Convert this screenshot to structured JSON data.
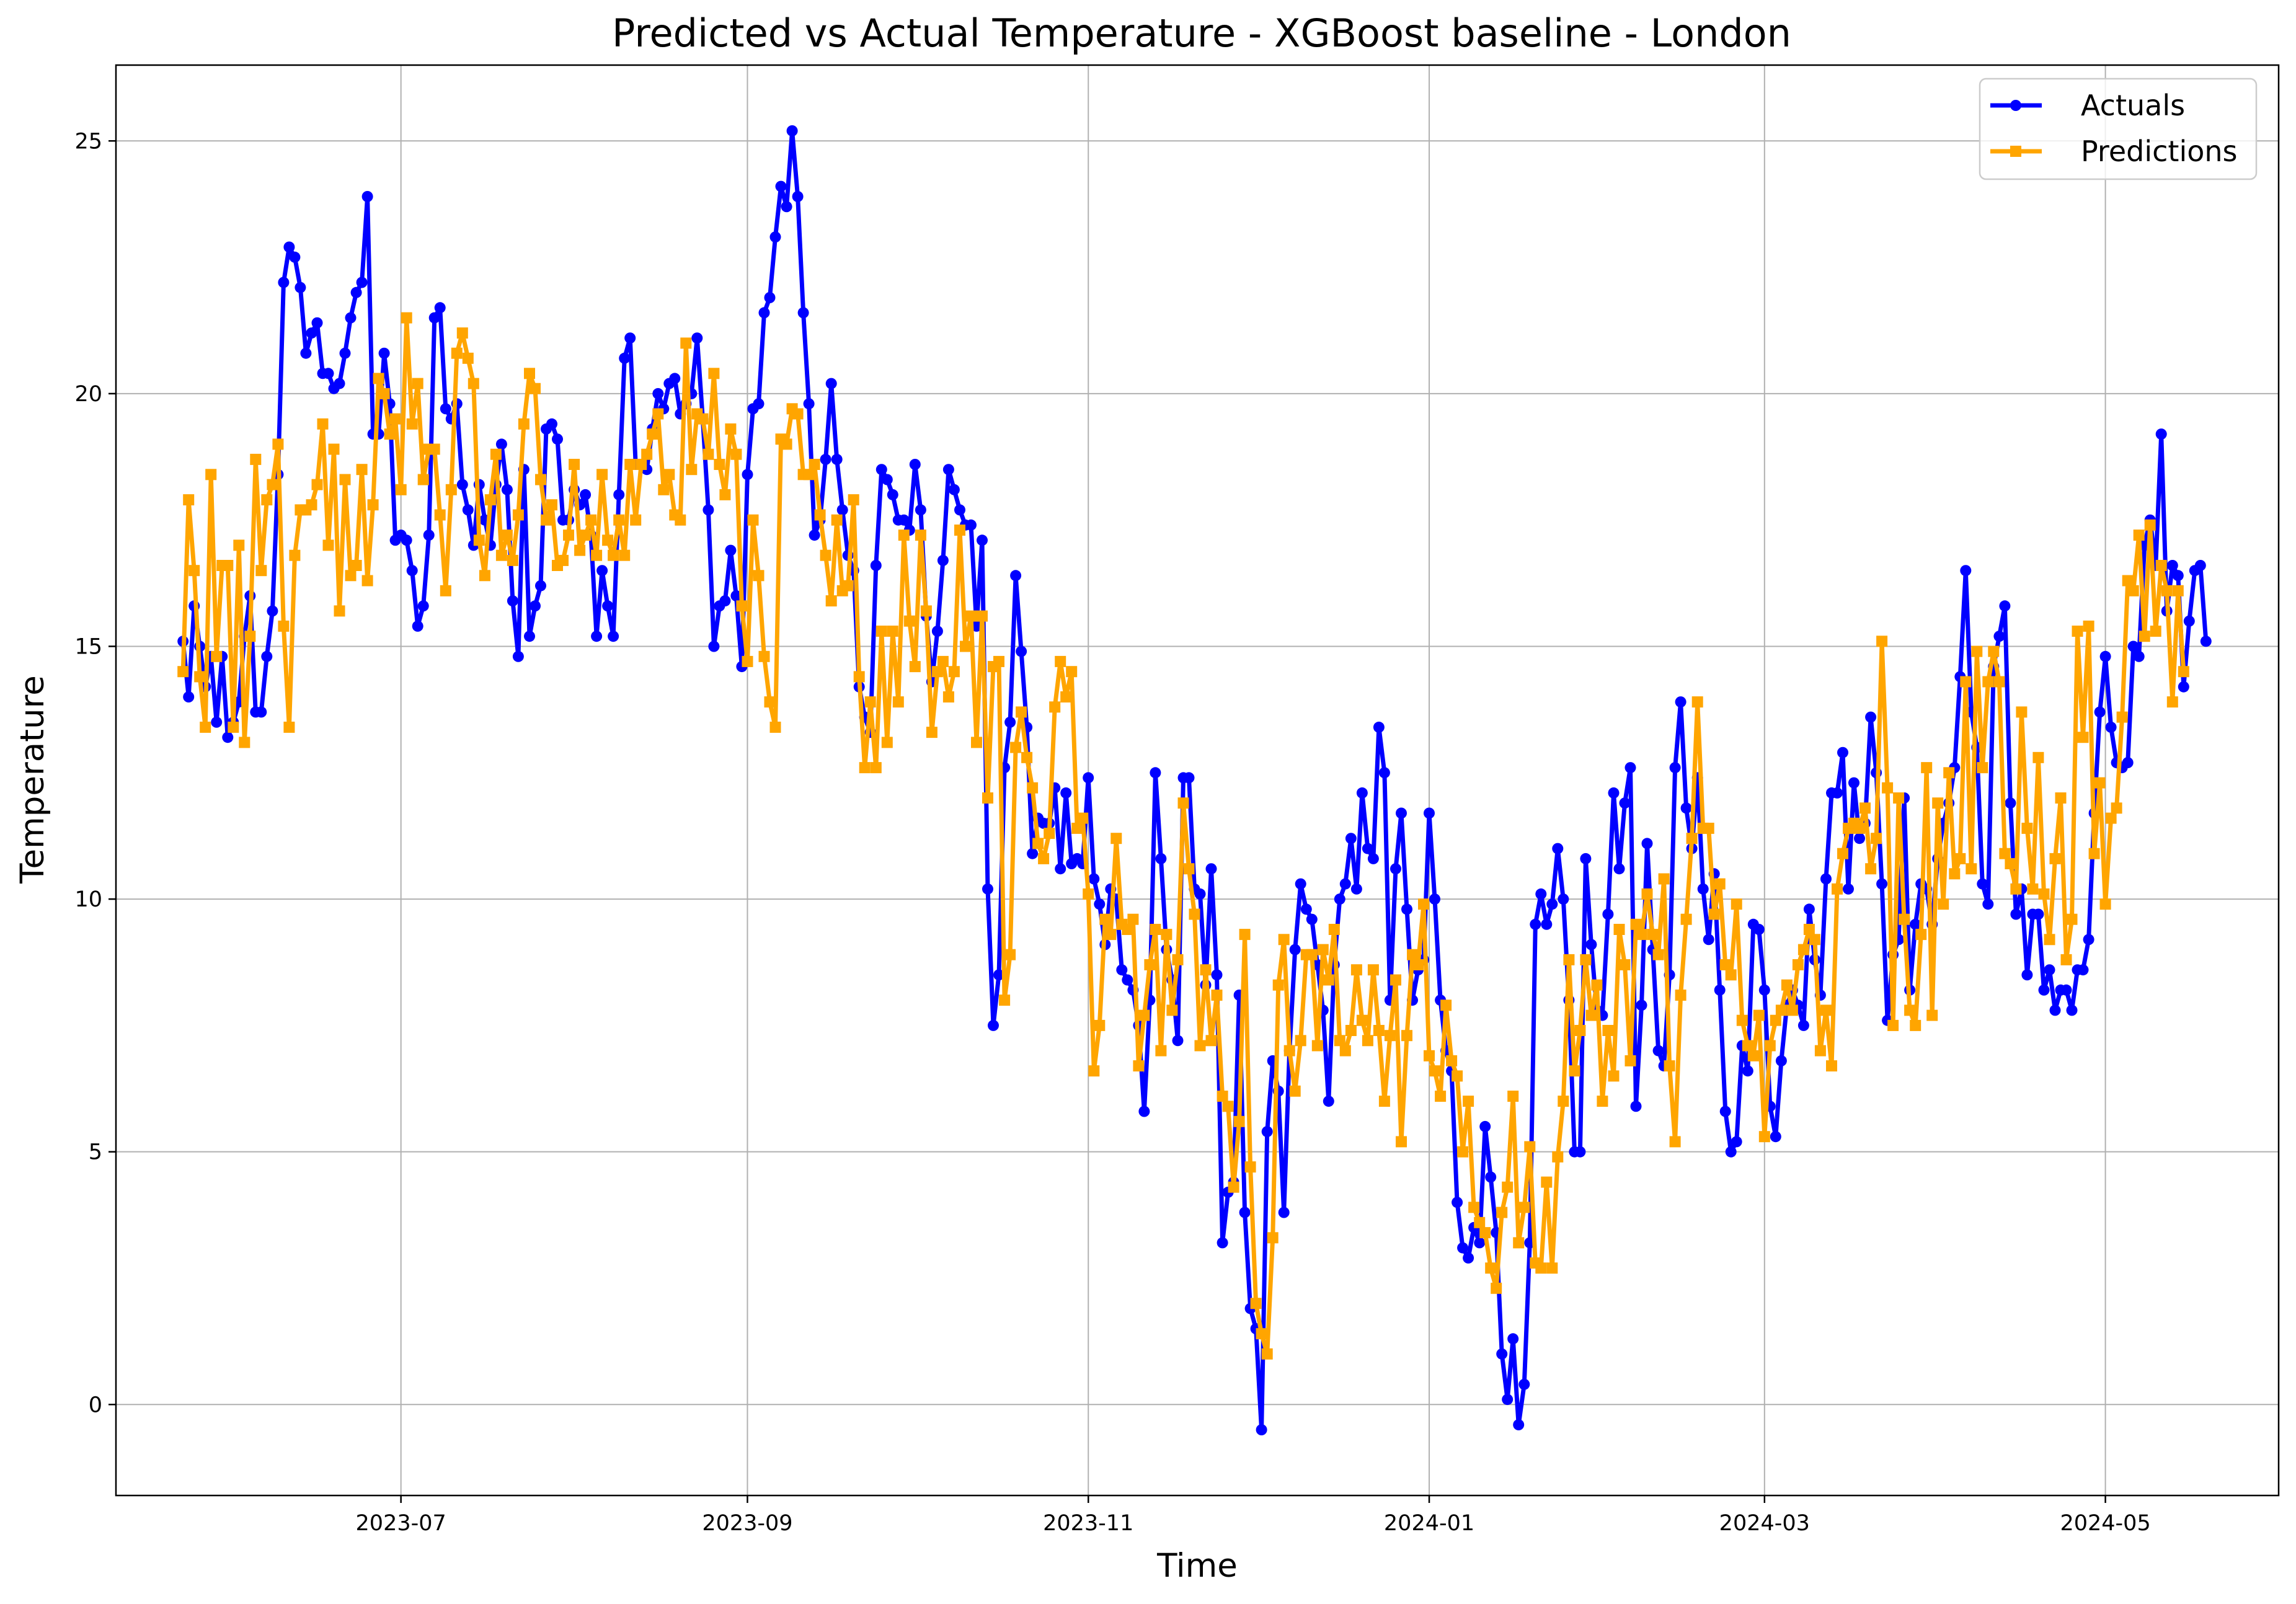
{
  "chart_data": {
    "type": "line",
    "title": "Predicted vs Actual Temperature - XGBoost baseline - London",
    "xlabel": "Time",
    "ylabel": "Temperature",
    "x_range": [
      "2023-05-11",
      "2024-06-01"
    ],
    "ylim": [
      -1.8,
      26.5
    ],
    "yticks": [
      0,
      5,
      10,
      15,
      20,
      25
    ],
    "xticks": [
      {
        "date": "2023-07-01",
        "label": "2023-07"
      },
      {
        "date": "2023-09-01",
        "label": "2023-09"
      },
      {
        "date": "2023-11-01",
        "label": "2023-11"
      },
      {
        "date": "2024-01-01",
        "label": "2024-01"
      },
      {
        "date": "2024-03-01",
        "label": "2024-03"
      },
      {
        "date": "2024-05-01",
        "label": "2024-05"
      }
    ],
    "grid": true,
    "legend_position": "top-right",
    "start_date": "2023-05-23",
    "series": [
      {
        "name": "Actuals",
        "color": "#0000ff",
        "marker": "circle",
        "values": [
          15.1,
          14.0,
          15.8,
          15.0,
          14.2,
          14.8,
          13.5,
          14.8,
          13.2,
          13.5,
          13.9,
          15.2,
          16.0,
          13.7,
          13.7,
          14.8,
          15.7,
          18.4,
          22.2,
          22.9,
          22.7,
          22.1,
          20.8,
          21.2,
          21.4,
          20.4,
          20.4,
          20.1,
          20.2,
          20.8,
          21.5,
          22.0,
          22.2,
          23.9,
          19.2,
          19.2,
          20.8,
          19.8,
          17.1,
          17.2,
          17.1,
          16.5,
          15.4,
          15.8,
          17.2,
          21.5,
          21.7,
          19.7,
          19.5,
          19.8,
          18.2,
          17.7,
          17.0,
          18.2,
          17.5,
          17.0,
          18.2,
          19.0,
          18.1,
          15.9,
          14.8,
          18.5,
          15.2,
          15.8,
          16.2,
          19.3,
          19.4,
          19.1,
          17.5,
          17.5,
          18.1,
          17.8,
          18.0,
          17.2,
          15.2,
          16.5,
          15.8,
          15.2,
          18.0,
          20.7,
          21.1,
          18.6,
          18.6,
          18.5,
          19.3,
          20.0,
          19.7,
          20.2,
          20.3,
          19.6,
          19.8,
          20.0,
          21.1,
          19.5,
          17.7,
          15.0,
          15.8,
          15.9,
          16.9,
          16.0,
          14.6,
          18.4,
          19.7,
          19.8,
          21.6,
          21.9,
          23.1,
          24.1,
          23.7,
          25.2,
          23.9,
          21.6,
          19.8,
          17.2,
          17.5,
          18.7,
          20.2,
          18.7,
          17.7,
          16.8,
          16.5,
          14.2,
          13.6,
          13.3,
          16.6,
          18.5,
          18.3,
          18.0,
          17.5,
          17.5,
          17.3,
          18.6,
          17.7,
          15.6,
          14.3,
          15.3,
          16.7,
          18.5,
          18.1,
          17.7,
          17.4,
          17.4,
          15.4,
          17.1,
          10.2,
          7.5,
          8.5,
          12.6,
          13.5,
          16.4,
          14.9,
          13.4,
          10.9,
          11.6,
          11.5,
          11.5,
          12.2,
          10.6,
          12.1,
          10.7,
          10.8,
          10.7,
          12.4,
          10.4,
          9.9,
          9.1,
          10.2,
          10.0,
          8.6,
          8.4,
          8.2,
          7.5,
          5.8,
          8.0,
          12.5,
          10.8,
          9.0,
          8.4,
          7.2,
          12.4,
          12.4,
          10.2,
          10.1,
          8.3,
          10.6,
          8.5,
          3.2,
          4.2,
          4.4,
          8.1,
          3.8,
          1.9,
          1.5,
          -0.5,
          5.4,
          6.8,
          6.2,
          3.8,
          7.0,
          9.0,
          10.3,
          9.8,
          9.6,
          8.7,
          7.8,
          6.0,
          8.7,
          10.0,
          10.3,
          11.2,
          10.2,
          12.1,
          11.0,
          10.8,
          13.4,
          12.5,
          8.0,
          10.6,
          11.7,
          9.8,
          8.0,
          8.6,
          8.8,
          11.7,
          10.0,
          8.0,
          7.0,
          6.6,
          4.0,
          3.1,
          2.9,
          3.5,
          3.2,
          5.5,
          4.5,
          3.4,
          1.0,
          0.1,
          1.3,
          -0.4,
          0.4,
          3.2,
          9.5,
          10.1,
          9.5,
          9.9,
          11.0,
          10.0,
          8.0,
          5.0,
          5.0,
          10.8,
          9.1,
          7.8,
          7.7,
          9.7,
          12.1,
          10.6,
          11.9,
          12.6,
          5.9,
          7.9,
          11.1,
          9.0,
          7.0,
          6.7,
          8.5,
          12.6,
          13.9,
          11.8,
          11.0,
          12.4,
          10.2,
          9.2,
          10.5,
          8.2,
          5.8,
          5.0,
          5.2,
          7.1,
          6.6,
          9.5,
          9.4,
          8.2,
          5.9,
          5.3,
          6.8,
          7.9,
          8.2,
          7.9,
          7.5,
          9.8,
          8.8,
          8.1,
          10.4,
          12.1,
          12.1,
          12.9,
          10.2,
          12.3,
          11.2,
          11.5,
          13.6,
          12.5,
          10.3,
          7.6,
          8.9,
          9.2,
          12.0,
          8.2,
          9.5,
          10.3,
          10.2,
          9.5,
          10.8,
          11.5,
          11.9,
          12.6,
          14.4,
          16.5,
          13.7,
          13.0,
          10.3,
          9.9,
          14.6,
          15.2,
          15.8,
          11.9,
          9.7,
          10.2,
          8.5,
          9.7,
          9.7,
          8.2,
          8.6,
          7.8,
          8.2,
          8.2,
          7.8,
          8.6,
          8.6,
          9.2,
          11.7,
          13.7,
          14.8,
          13.4,
          12.7,
          12.6,
          12.7,
          15.0,
          14.8,
          17.0,
          17.5,
          16.6,
          19.2,
          15.7,
          16.6,
          16.4,
          14.2,
          15.5,
          16.5,
          16.6,
          15.1
        ]
      },
      {
        "name": "Predictions",
        "color": "#ffa500",
        "marker": "square",
        "values": [
          14.5,
          17.9,
          16.5,
          14.4,
          13.4,
          18.4,
          14.8,
          16.6,
          16.6,
          13.4,
          17.0,
          13.1,
          15.2,
          18.7,
          16.5,
          17.9,
          18.2,
          19.0,
          15.4,
          13.4,
          16.8,
          17.7,
          17.7,
          17.8,
          18.2,
          19.4,
          17.0,
          18.9,
          15.7,
          18.3,
          16.4,
          16.6,
          18.5,
          16.3,
          17.8,
          20.3,
          20.0,
          19.2,
          19.5,
          18.1,
          21.5,
          19.4,
          20.2,
          18.3,
          18.9,
          18.9,
          17.6,
          16.1,
          18.1,
          20.8,
          21.2,
          20.7,
          20.2,
          17.1,
          16.4,
          17.9,
          18.8,
          16.8,
          17.2,
          16.7,
          17.6,
          19.4,
          20.4,
          20.1,
          18.3,
          17.5,
          17.8,
          16.6,
          16.7,
          17.2,
          18.6,
          16.9,
          17.2,
          17.5,
          16.8,
          18.4,
          17.1,
          16.8,
          17.5,
          16.8,
          18.6,
          17.5,
          18.6,
          18.8,
          19.2,
          19.6,
          18.1,
          18.4,
          17.6,
          17.5,
          21.0,
          18.5,
          19.6,
          19.5,
          18.8,
          20.4,
          18.6,
          18.0,
          19.3,
          18.8,
          15.8,
          14.7,
          17.5,
          16.4,
          14.8,
          13.9,
          13.4,
          19.1,
          19.0,
          19.7,
          19.6,
          18.4,
          18.4,
          18.6,
          17.6,
          16.8,
          15.9,
          17.5,
          16.1,
          16.2,
          17.9,
          14.4,
          12.6,
          13.9,
          12.6,
          15.3,
          13.1,
          15.3,
          13.9,
          17.2,
          15.5,
          14.6,
          17.2,
          15.7,
          13.3,
          14.5,
          14.7,
          14.0,
          14.5,
          17.3,
          15.0,
          15.6,
          13.1,
          15.6,
          12.0,
          14.6,
          14.7,
          8.0,
          8.9,
          13.0,
          13.7,
          12.8,
          12.2,
          11.1,
          10.8,
          11.3,
          13.8,
          14.7,
          14.0,
          14.5,
          11.4,
          11.6,
          10.1,
          6.6,
          7.5,
          9.6,
          9.3,
          11.2,
          9.5,
          9.4,
          9.6,
          6.7,
          7.7,
          8.7,
          9.4,
          7.0,
          9.3,
          7.8,
          8.8,
          11.9,
          10.6,
          9.7,
          7.1,
          8.6,
          7.2,
          8.1,
          6.1,
          5.9,
          4.3,
          5.6,
          9.3,
          4.7,
          2.0,
          1.4,
          1.0,
          3.3,
          8.3,
          9.2,
          7.0,
          6.2,
          7.2,
          8.9,
          8.9,
          7.1,
          9.0,
          8.4,
          9.4,
          7.2,
          7.0,
          7.4,
          8.6,
          7.6,
          7.2,
          8.6,
          7.4,
          6.0,
          7.3,
          8.4,
          5.2,
          7.3,
          8.9,
          8.7,
          9.9,
          6.9,
          6.6,
          6.1,
          7.9,
          6.8,
          6.5,
          5.0,
          6.0,
          3.9,
          3.6,
          3.4,
          2.7,
          2.3,
          3.8,
          4.3,
          6.1,
          3.2,
          3.9,
          5.1,
          2.8,
          2.7,
          4.4,
          2.7,
          4.9,
          6.0,
          8.8,
          6.6,
          7.4,
          8.8,
          7.7,
          8.3,
          6.0,
          7.4,
          6.5,
          9.4,
          8.7,
          6.8,
          9.5,
          9.3,
          10.1,
          9.3,
          8.9,
          10.4,
          6.7,
          5.2,
          8.1,
          9.6,
          11.2,
          13.9,
          11.4,
          11.4,
          9.7,
          10.3,
          8.7,
          8.5,
          9.9,
          7.6,
          7.1,
          6.9,
          7.7,
          5.3,
          7.1,
          7.6,
          7.8,
          8.3,
          7.8,
          8.7,
          9.0,
          9.4,
          9.2,
          7.0,
          7.8,
          6.7,
          10.2,
          10.9,
          11.4,
          11.5,
          11.4,
          11.8,
          10.6,
          11.2,
          15.1,
          12.2,
          7.5,
          12.0,
          9.6,
          7.8,
          7.5,
          9.3,
          12.6,
          7.7,
          11.9,
          9.9,
          12.5,
          10.5,
          10.8,
          14.3,
          10.6,
          14.9,
          12.6,
          14.3,
          14.9,
          14.3,
          10.9,
          10.7,
          10.2,
          13.7,
          11.4,
          10.2,
          12.8,
          10.1,
          9.2,
          10.8,
          12.0,
          8.8,
          9.6,
          15.3,
          13.2,
          15.4,
          10.9,
          12.3,
          9.9,
          11.6,
          11.8,
          13.6,
          16.3,
          16.1,
          17.2,
          15.2,
          17.4,
          15.3,
          16.6,
          16.1,
          13.9,
          16.1,
          14.5
        ]
      }
    ]
  }
}
